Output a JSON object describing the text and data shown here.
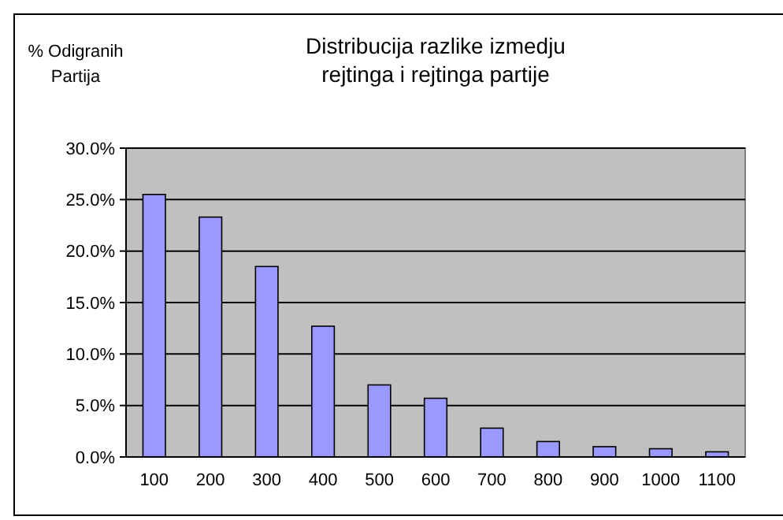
{
  "chart_data": {
    "type": "bar",
    "title": "Distribucija razlike izmedju rejtinga i rejtinga partije",
    "ylabel": "% Odigranih Partija",
    "categories": [
      "100",
      "200",
      "300",
      "400",
      "500",
      "600",
      "700",
      "800",
      "900",
      "1000",
      "1100"
    ],
    "values": [
      25.5,
      23.3,
      18.5,
      12.7,
      7.0,
      5.7,
      2.8,
      1.5,
      1.0,
      0.8,
      0.5
    ],
    "color": "#9999ff",
    "ylim": [
      0,
      30
    ],
    "yticks": [
      {
        "value": 0,
        "label": "0.0%"
      },
      {
        "value": 5,
        "label": "5.0%"
      },
      {
        "value": 10,
        "label": "10.0%"
      },
      {
        "value": 15,
        "label": "15.0%"
      },
      {
        "value": 20,
        "label": "20.0%"
      },
      {
        "value": 25,
        "label": "25.0%"
      },
      {
        "value": 30,
        "label": "30.0%"
      }
    ],
    "grid": "y"
  }
}
